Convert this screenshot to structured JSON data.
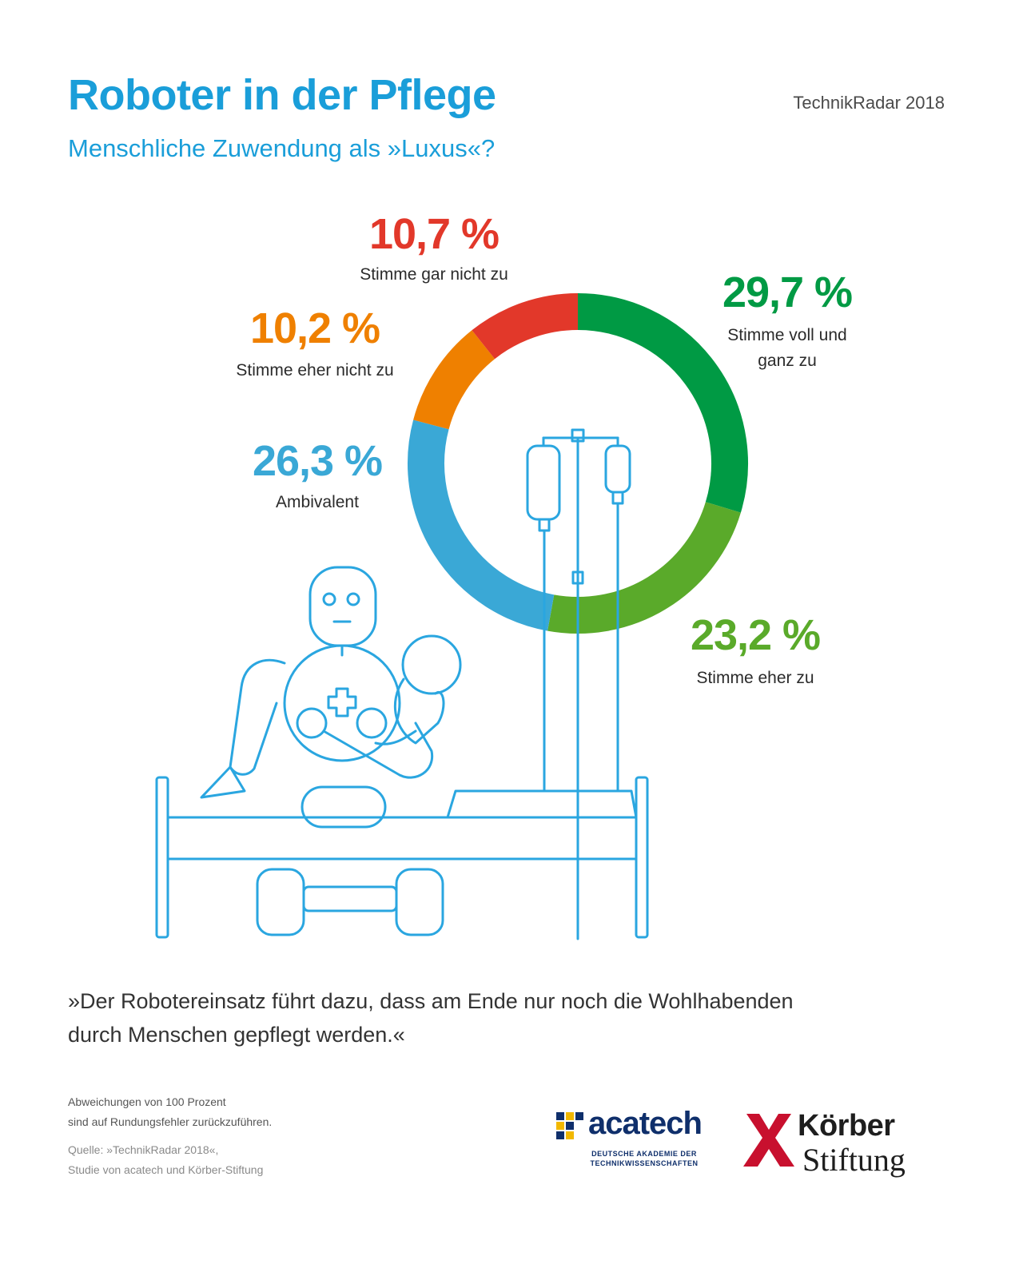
{
  "header": {
    "title": "Roboter in der Pflege",
    "subtitle": "Menschliche Zuwendung als »Luxus«?",
    "source_tag": "TechnikRadar 2018"
  },
  "chart_data": {
    "type": "donut",
    "title": "Roboter in der Pflege",
    "subtitle": "Menschliche Zuwendung als »Luxus«?",
    "series": [
      {
        "name": "Stimme voll und ganz zu",
        "value": 29.7,
        "value_label": "29,7 %",
        "color": "#009a44"
      },
      {
        "name": "Stimme eher zu",
        "value": 23.2,
        "value_label": "23,2 %",
        "color": "#5aaa2a"
      },
      {
        "name": "Ambivalent",
        "value": 26.3,
        "value_label": "26,3 %",
        "color": "#3aa8d6"
      },
      {
        "name": "Stimme eher nicht zu",
        "value": 10.2,
        "value_label": "10,2 %",
        "color": "#ef8000"
      },
      {
        "name": "Stimme gar nicht zu",
        "value": 10.7,
        "value_label": "10,7 %",
        "color": "#e2382a"
      }
    ]
  },
  "labels": {
    "voll": {
      "pct": "29,7 %",
      "line1": "Stimme voll und",
      "line2": "ganz zu"
    },
    "eher": {
      "pct": "23,2 %",
      "line1": "Stimme eher zu"
    },
    "ambi": {
      "pct": "26,3 %",
      "line1": "Ambivalent"
    },
    "eher_nicht": {
      "pct": "10,2 %",
      "line1": "Stimme eher nicht zu"
    },
    "gar_nicht": {
      "pct": "10,7 %",
      "line1": "Stimme gar nicht zu"
    }
  },
  "quote": {
    "line1": "»Der Robotereinsatz führt dazu, dass am Ende nur noch die Wohlhabenden",
    "line2": "durch Menschen gepflegt werden.«"
  },
  "footer": {
    "note1": "Abweichungen von 100 Prozent",
    "note2": "sind auf Rundungsfehler zurückzuführen.",
    "source1": "Quelle: »TechnikRadar 2018«,",
    "source2": "Studie von acatech und Körber-Stiftung"
  },
  "logos": {
    "acatech": "acatech",
    "acatech_sub1": "DEUTSCHE AKADEMIE DER",
    "acatech_sub2": "TECHNIKWISSENSCHAFTEN",
    "koerber1": "Körber",
    "koerber2": "Stiftung"
  },
  "colors": {
    "brand_blue": "#1a9ed9",
    "illustration": "#2aa6e0"
  }
}
